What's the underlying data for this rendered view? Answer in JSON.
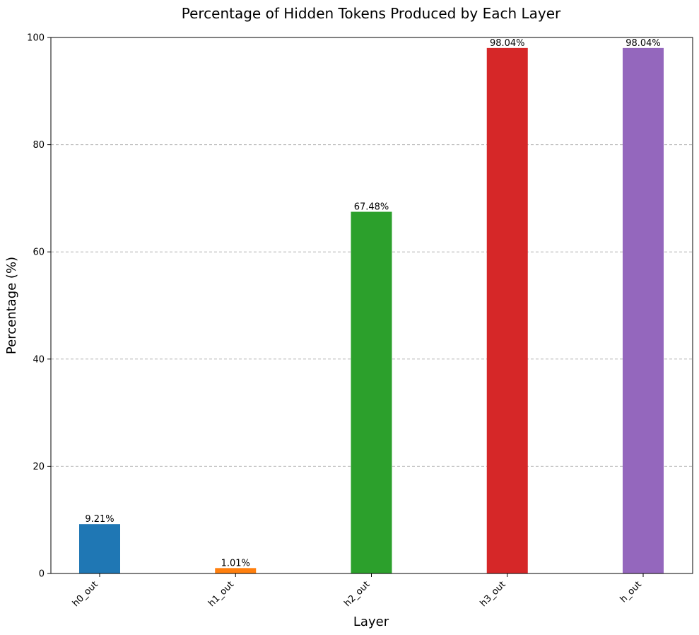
{
  "chart_data": {
    "type": "bar",
    "title": "Percentage of Hidden Tokens Produced by Each Layer",
    "xlabel": "Layer",
    "ylabel": "Percentage (%)",
    "categories": [
      "h0_out",
      "h1_out",
      "h2_out",
      "h3_out",
      "h_out"
    ],
    "values": [
      9.21,
      1.01,
      67.48,
      98.04,
      98.04
    ],
    "data_labels": [
      "9.21%",
      "1.01%",
      "67.48%",
      "98.04%",
      "98.04%"
    ],
    "colors": [
      "#1f77b4",
      "#ff7f0e",
      "#2ca02c",
      "#d62728",
      "#9467bd"
    ],
    "ylim": [
      0,
      100
    ],
    "yticks": [
      "0",
      "20",
      "40",
      "60",
      "80",
      "100"
    ],
    "grid": "y-axis dashed",
    "legend": "none"
  }
}
